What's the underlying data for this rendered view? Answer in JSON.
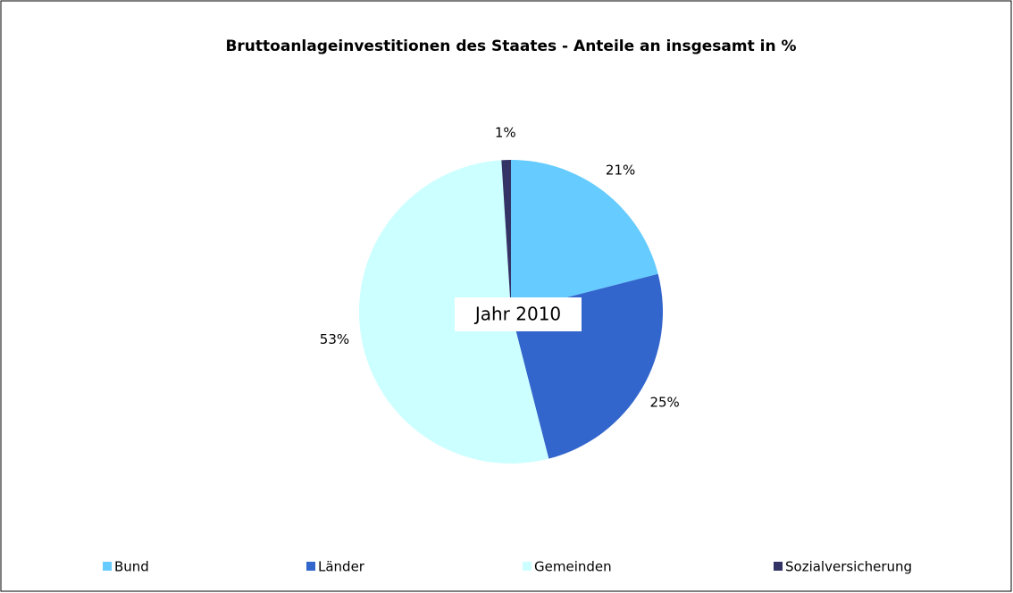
{
  "chart_data": {
    "type": "pie",
    "title": "Bruttoanlageinvestitionen des Staates - Anteile an insgesamt in %",
    "annotation": "Jahr 2010",
    "categories": [
      "Bund",
      "Länder",
      "Gemeinden",
      "Sozialversicherung"
    ],
    "values": [
      21,
      25,
      53,
      1
    ],
    "value_labels": [
      "21%",
      "25%",
      "53%",
      "1%"
    ],
    "colors": [
      "#66ccff",
      "#3366cc",
      "#ccffff",
      "#333366"
    ],
    "legend": "bottom"
  }
}
